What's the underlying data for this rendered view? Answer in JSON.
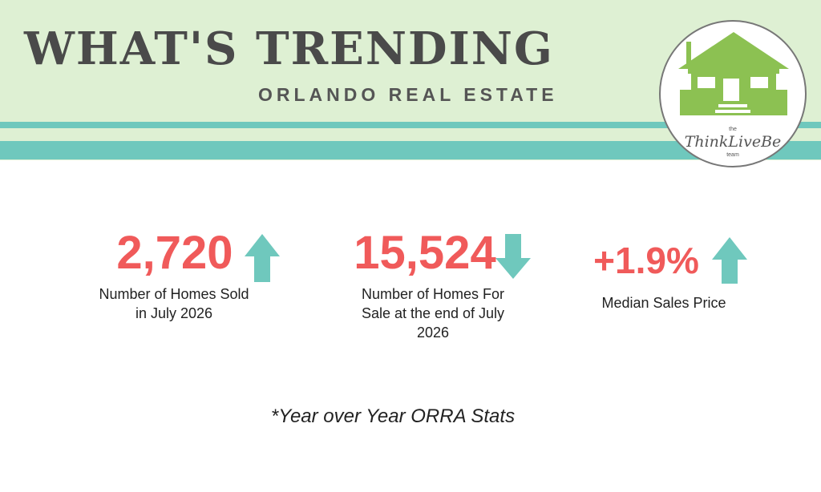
{
  "header": {
    "title": "WHAT'S TRENDING",
    "subtitle": "ORLANDO REAL ESTATE"
  },
  "logo": {
    "top": "the",
    "name": "ThinkLiveBe",
    "bottom": "team"
  },
  "stats": [
    {
      "value": "2,720",
      "label_lines": [
        "Number of Homes Sold",
        "in July 2026"
      ]
    },
    {
      "value": "15,524",
      "label_lines": [
        "Number of Homes For",
        "Sale at the end of July",
        "2026"
      ]
    },
    {
      "value": "+1.9%",
      "label_lines": [
        "Median Sales Price"
      ]
    }
  ],
  "footnote": "*Year over Year ORRA Stats"
}
